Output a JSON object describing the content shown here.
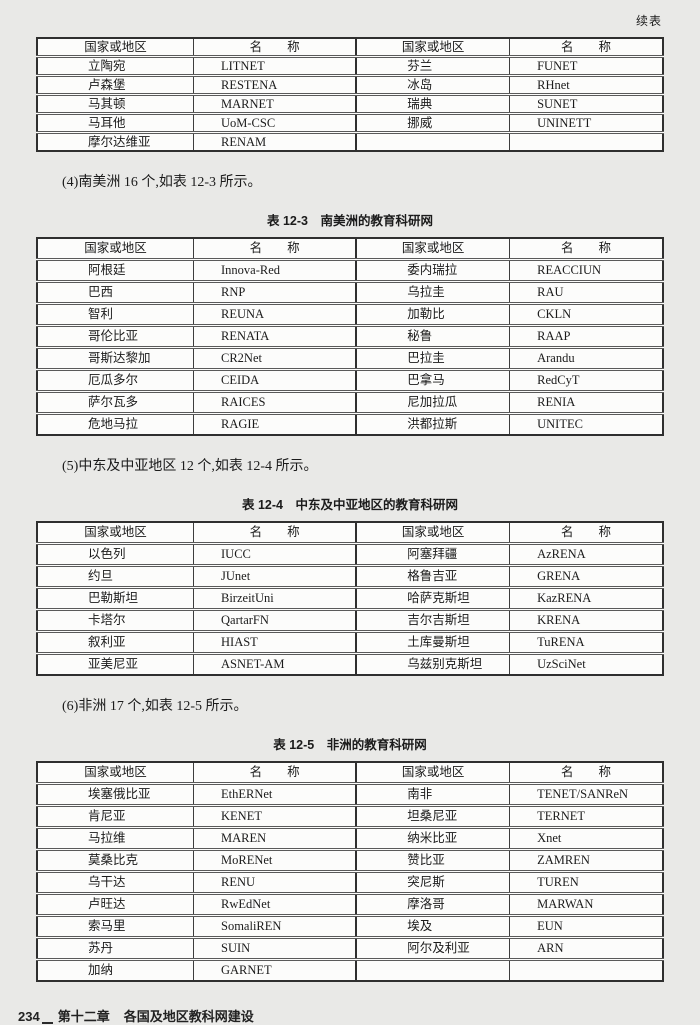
{
  "page": {
    "continued_label": "续表",
    "footer": {
      "page_number": "234",
      "chapter": "第十二章",
      "section_title": "各国及地区教科网建设"
    }
  },
  "paragraphs": {
    "p4": "(4)南美洲 16 个,如表 12-3 所示。",
    "p5": "(5)中东及中亚地区 12 个,如表 12-4 所示。",
    "p6": "(6)非洲 17 个,如表 12-5 所示。"
  },
  "tables": [
    {
      "name": "europe-continued-table",
      "caption": "",
      "headers": [
        "国家或地区",
        "名　　称",
        "国家或地区",
        "名　　称"
      ],
      "rows": [
        [
          "立陶宛",
          "LITNET",
          "芬兰",
          "FUNET"
        ],
        [
          "卢森堡",
          "RESTENA",
          "冰岛",
          "RHnet"
        ],
        [
          "马其顿",
          "MARNET",
          "瑞典",
          "SUNET"
        ],
        [
          "马耳他",
          "UoM-CSC",
          "挪威",
          "UNINETT"
        ],
        [
          "摩尔达维亚",
          "RENAM",
          "",
          ""
        ]
      ]
    },
    {
      "name": "table-12-3-south-america",
      "caption": "表 12-3　南美洲的教育科研网",
      "headers": [
        "国家或地区",
        "名　　称",
        "国家或地区",
        "名　　称"
      ],
      "rows": [
        [
          "阿根廷",
          "Innova-Red",
          "委内瑞拉",
          "REACCIUN"
        ],
        [
          "巴西",
          "RNP",
          "乌拉圭",
          "RAU"
        ],
        [
          "智利",
          "REUNA",
          "加勒比",
          "CKLN"
        ],
        [
          "哥伦比亚",
          "RENATA",
          "秘鲁",
          "RAAP"
        ],
        [
          "哥斯达黎加",
          "CR2Net",
          "巴拉圭",
          "Arandu"
        ],
        [
          "厄瓜多尔",
          "CEIDA",
          "巴拿马",
          "RedCyT"
        ],
        [
          "萨尔瓦多",
          "RAICES",
          "尼加拉瓜",
          "RENIA"
        ],
        [
          "危地马拉",
          "RAGIE",
          "洪都拉斯",
          "UNITEC"
        ]
      ]
    },
    {
      "name": "table-12-4-middle-east-central-asia",
      "caption": "表 12-4　中东及中亚地区的教育科研网",
      "headers": [
        "国家或地区",
        "名　　称",
        "国家或地区",
        "名　　称"
      ],
      "rows": [
        [
          "以色列",
          "IUCC",
          "阿塞拜疆",
          "AzRENA"
        ],
        [
          "约旦",
          "JUnet",
          "格鲁吉亚",
          "GRENA"
        ],
        [
          "巴勒斯坦",
          "BirzeitUni",
          "哈萨克斯坦",
          "KazRENA"
        ],
        [
          "卡塔尔",
          "QartarFN",
          "吉尔吉斯坦",
          "KRENA"
        ],
        [
          "叙利亚",
          "HIAST",
          "土库曼斯坦",
          "TuRENA"
        ],
        [
          "亚美尼亚",
          "ASNET-AM",
          "乌兹别克斯坦",
          "UzSciNet"
        ]
      ]
    },
    {
      "name": "table-12-5-africa",
      "caption": "表 12-5　非洲的教育科研网",
      "headers": [
        "国家或地区",
        "名　　称",
        "国家或地区",
        "名　　称"
      ],
      "rows": [
        [
          "埃塞俄比亚",
          "EthERNet",
          "南非",
          "TENET/SANReN"
        ],
        [
          "肯尼亚",
          "KENET",
          "坦桑尼亚",
          "TERNET"
        ],
        [
          "马拉维",
          "MAREN",
          "纳米比亚",
          "Xnet"
        ],
        [
          "莫桑比克",
          "MoRENet",
          "赞比亚",
          "ZAMREN"
        ],
        [
          "乌干达",
          "RENU",
          "突尼斯",
          "TUREN"
        ],
        [
          "卢旺达",
          "RwEdNet",
          "摩洛哥",
          "MARWAN"
        ],
        [
          "索马里",
          "SomaliREN",
          "埃及",
          "EUN"
        ],
        [
          "苏丹",
          "SUIN",
          "阿尔及利亚",
          "ARN"
        ],
        [
          "加纳",
          "GARNET",
          "",
          ""
        ]
      ]
    }
  ]
}
